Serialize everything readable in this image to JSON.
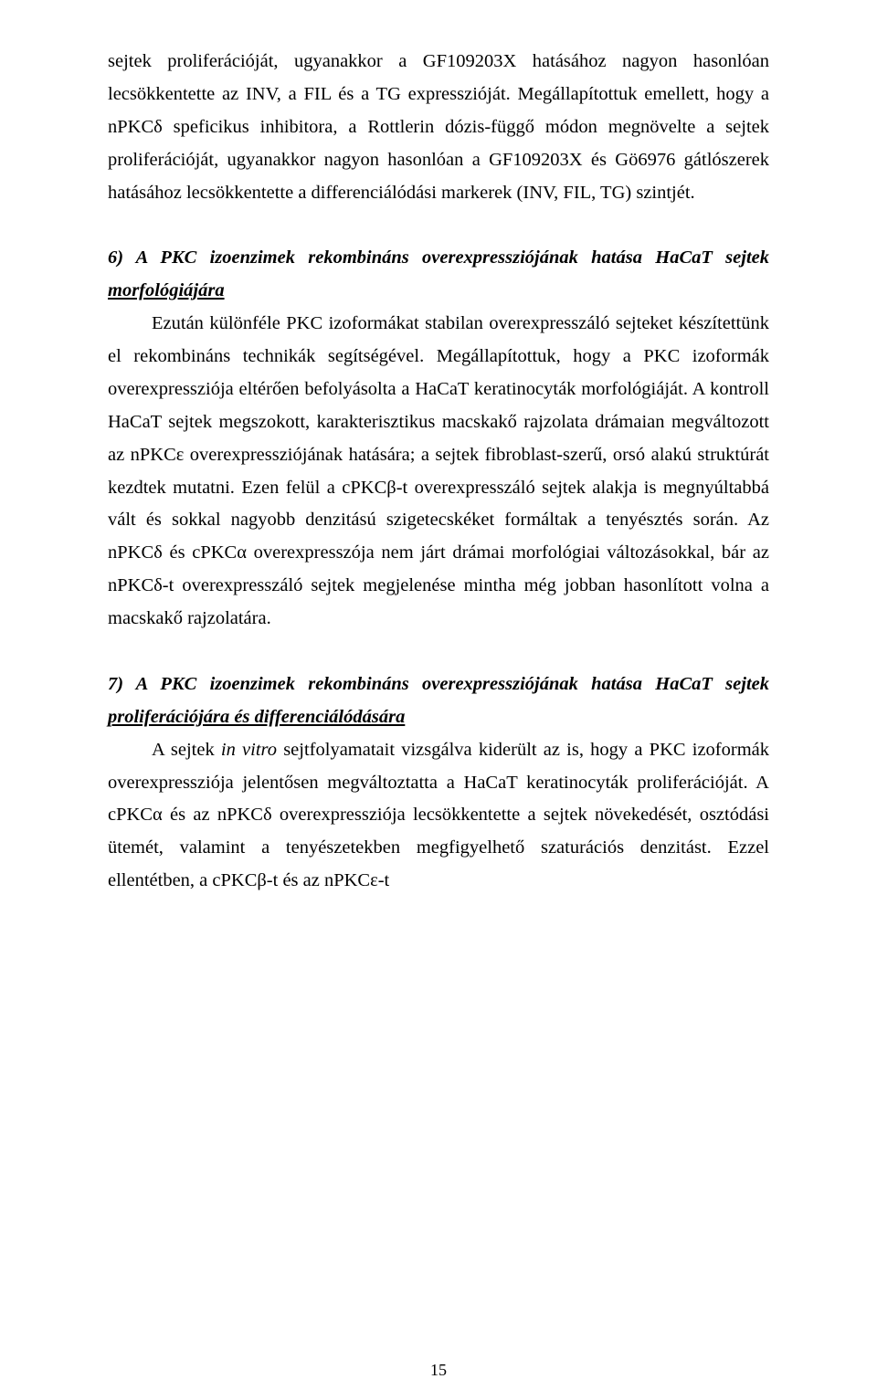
{
  "intro_para": "sejtek proliferációját, ugyanakkor a GF109203X hatásához nagyon hasonlóan lecsökkentette az INV, a FIL és a TG expresszióját. Megállapítottuk emellett, hogy a nPKCδ speficikus inhibitora, a Rottlerin dózis-függő módon megnövelte a sejtek proliferációját, ugyanakkor nagyon hasonlóan a GF109203X és Gö6976 gátlószerek hatásához lecsökkentette a differenciálódási markerek (INV, FIL, TG) szintjét.",
  "section6": {
    "heading_lead": "6) A PKC izoenzimek rekombináns overexpressziójának hatása HaCaT sejtek ",
    "heading_underline": "morfológiájára",
    "body": "Ezután különféle PKC izoformákat stabilan overexpresszáló sejteket készítettünk el rekombináns technikák segítségével. Megállapítottuk, hogy a PKC izoformák overexpressziója eltérően befolyásolta a HaCaT keratinocyták morfológiáját. A kontroll HaCaT sejtek megszokott, karakterisztikus macskakő rajzolata drámaian megváltozott az nPKCε overexpressziójának hatására; a sejtek fibroblast-szerű, orsó alakú struktúrát kezdtek mutatni. Ezen felül a cPKCβ-t overexpresszáló sejtek alakja is megnyúltabbá vált és sokkal nagyobb denzitású szigetecskéket formáltak a tenyésztés során. Az nPKCδ és cPKCα overexpresszója nem járt drámai morfológiai változásokkal, bár az nPKCδ-t overexpresszáló sejtek megjelenése mintha még jobban hasonlított volna a macskakő rajzolatára."
  },
  "section7": {
    "heading_lead": "7) A PKC izoenzimek rekombináns overexpressziójának hatása HaCaT sejtek ",
    "heading_underline": "proliferációjára és differenciálódására",
    "body_pre": "A sejtek ",
    "body_italic": "in vitro",
    "body_post": " sejtfolyamatait vizsgálva kiderült az is, hogy a PKC izoformák overexpressziója jelentősen megváltoztatta a HaCaT keratinocyták proliferációját. A cPKCα és az nPKCδ overexpressziója lecsökkentette a sejtek növekedését, osztódási ütemét, valamint a tenyészetekben megfigyelhető szaturációs denzitást. Ezzel ellentétben, a cPKCβ-t és az nPKCε-t"
  },
  "page_number": "15"
}
